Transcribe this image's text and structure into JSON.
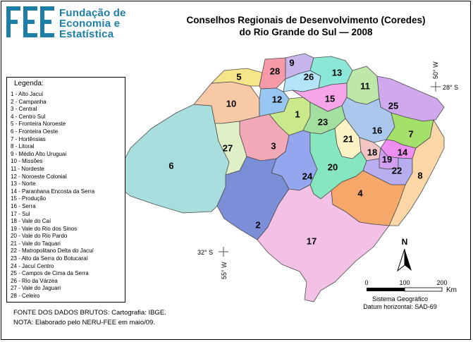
{
  "logo": {
    "lines": [
      "Fundação de",
      "Economia e",
      "Estatística"
    ]
  },
  "title": {
    "line1": "Conselhos Regionais de Desenvolvimento (Coredes)",
    "line2": "do Rio Grande do Sul — 2008"
  },
  "legend": {
    "heading": "Legenda:",
    "items": [
      "1 - Alto Jacuí",
      "2 - Campanha",
      "3 - Central",
      "4 - Centro Sul",
      "5 - Fronteira Noroeste",
      "6 - Fronteira Oeste",
      "7 - Hortênsias",
      "8 - Litoral",
      "9 - Médio Alto Uruguai",
      "10 - Missões",
      "11 - Nordeste",
      "12 - Noroeste Colonial",
      "13 - Norte",
      "14 - Paranhana Encosta da Serra",
      "15 - Produção",
      "16 - Serra",
      "17 - Sul",
      "18 - Vale do Caí",
      "19 - Vale do Rio dos Sinos",
      "20 - Vale do Rio Pardo",
      "21 - Vale do Taquari",
      "22 - Matropolitano Delta do Jacuí",
      "23 - Alto da Serra do Botucaraí",
      "24 - Jacuí Centro",
      "25 - Campos de Cima da Serra",
      "26 - Rio da Várzea",
      "27 - Vale do Jaguari",
      "28 - Celeiro"
    ]
  },
  "regions": [
    {
      "id": "1",
      "color": "#c9e98a"
    },
    {
      "id": "2",
      "color": "#7b8fd9"
    },
    {
      "id": "3",
      "color": "#f2a8b7"
    },
    {
      "id": "4",
      "color": "#f6a86a"
    },
    {
      "id": "5",
      "color": "#f7e58a"
    },
    {
      "id": "6",
      "color": "#a9dede"
    },
    {
      "id": "7",
      "color": "#a4e06a"
    },
    {
      "id": "8",
      "color": "#fbd7a8"
    },
    {
      "id": "9",
      "color": "#c7b6ec"
    },
    {
      "id": "10",
      "color": "#f8c9a7"
    },
    {
      "id": "11",
      "color": "#bde8a9"
    },
    {
      "id": "12",
      "color": "#97c7f0"
    },
    {
      "id": "13",
      "color": "#8be8d8"
    },
    {
      "id": "14",
      "color": "#ec8ff0"
    },
    {
      "id": "15",
      "color": "#f6a6e8"
    },
    {
      "id": "16",
      "color": "#aac8ee"
    },
    {
      "id": "17",
      "color": "#f3c0e6"
    },
    {
      "id": "18",
      "color": "#f3c6c6"
    },
    {
      "id": "19",
      "color": "#d19ff0"
    },
    {
      "id": "20",
      "color": "#86e6c0"
    },
    {
      "id": "21",
      "color": "#fbf3c6"
    },
    {
      "id": "22",
      "color": "#b7aef0"
    },
    {
      "id": "23",
      "color": "#a3e0a0"
    },
    {
      "id": "24",
      "color": "#93a6ee"
    },
    {
      "id": "25",
      "color": "#cfa8ee"
    },
    {
      "id": "26",
      "color": "#b4e4f8"
    },
    {
      "id": "27",
      "color": "#dff0c6"
    },
    {
      "id": "28",
      "color": "#f79aa8"
    }
  ],
  "coordinates": {
    "lat_top": "28° S",
    "lon_top": "50° W",
    "lat_bottom": "32° S",
    "lon_bottom": "55° W"
  },
  "north_label": "N",
  "scale": {
    "ticks": [
      "0",
      "100",
      "200"
    ],
    "unit": "Km"
  },
  "geo_system": {
    "line1": "Sistema Geográfico",
    "line2": "Datum horizontal: SAD-69"
  },
  "footer": {
    "source": "FONTE DOS DADOS BRUTOS: Cartografia: IBGE.",
    "note": "NOTA: Elaborado pelo NERU-FEE em maio/09."
  }
}
